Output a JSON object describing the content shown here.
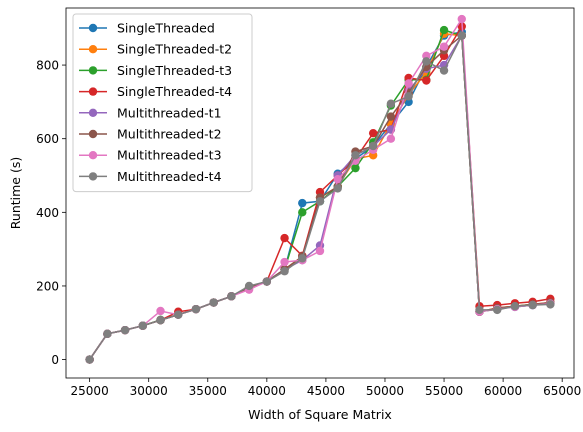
{
  "chart_data": {
    "type": "line",
    "title": "",
    "xlabel": "Width of Square Matrix",
    "ylabel": "Runtime (s)",
    "xlim": [
      23000,
      66000
    ],
    "ylim": [
      -50,
      955
    ],
    "xticks": [
      25000,
      30000,
      35000,
      40000,
      45000,
      50000,
      55000,
      60000,
      65000
    ],
    "yticks": [
      0,
      200,
      400,
      600,
      800
    ],
    "grid": false,
    "legend_position": "top-left",
    "x": [
      25000,
      26500,
      28000,
      29500,
      31000,
      32500,
      34000,
      35500,
      37000,
      38500,
      40000,
      41500,
      43000,
      44500,
      46000,
      47500,
      49000,
      50500,
      52000,
      53500,
      55000,
      56500,
      58000,
      59500,
      61000,
      62500,
      64000
    ],
    "series": [
      {
        "name": "SingleThreaded",
        "color": "#1f77b4",
        "values": [
          0,
          70,
          80,
          92,
          107,
          122,
          137,
          155,
          172,
          197,
          212,
          245,
          425,
          430,
          505,
          545,
          580,
          640,
          700,
          795,
          880,
          890,
          130,
          138,
          143,
          148,
          152
        ]
      },
      {
        "name": "SingleThreaded-t2",
        "color": "#ff7f0e",
        "values": [
          0,
          70,
          80,
          92,
          107,
          122,
          137,
          155,
          172,
          197,
          212,
          245,
          280,
          440,
          470,
          545,
          555,
          640,
          720,
          780,
          885,
          880,
          130,
          140,
          145,
          150,
          155
        ]
      },
      {
        "name": "SingleThreaded-t3",
        "color": "#2ca02c",
        "values": [
          0,
          70,
          80,
          92,
          108,
          122,
          137,
          155,
          172,
          197,
          212,
          245,
          400,
          430,
          470,
          520,
          590,
          690,
          760,
          760,
          895,
          880,
          130,
          137,
          145,
          150,
          152
        ]
      },
      {
        "name": "SingleThreaded-t4",
        "color": "#d62728",
        "values": [
          0,
          70,
          80,
          92,
          107,
          130,
          137,
          155,
          172,
          197,
          212,
          330,
          282,
          455,
          500,
          545,
          615,
          625,
          765,
          758,
          825,
          905,
          145,
          148,
          153,
          157,
          165
        ]
      },
      {
        "name": "Multithreaded-t1",
        "color": "#9467bd",
        "values": [
          0,
          70,
          80,
          92,
          107,
          122,
          137,
          155,
          172,
          197,
          212,
          245,
          270,
          310,
          500,
          555,
          580,
          625,
          730,
          790,
          800,
          880,
          130,
          138,
          143,
          148,
          152
        ]
      },
      {
        "name": "Multithreaded-t2",
        "color": "#8c564b",
        "values": [
          0,
          70,
          80,
          92,
          107,
          122,
          137,
          155,
          172,
          197,
          212,
          245,
          280,
          440,
          470,
          565,
          580,
          660,
          725,
          795,
          840,
          880,
          130,
          140,
          145,
          150,
          155
        ]
      },
      {
        "name": "Multithreaded-t3",
        "color": "#e377c2",
        "values": [
          0,
          70,
          80,
          92,
          132,
          122,
          137,
          155,
          172,
          190,
          212,
          265,
          270,
          295,
          490,
          540,
          570,
          600,
          750,
          825,
          850,
          925,
          130,
          137,
          143,
          148,
          152
        ]
      },
      {
        "name": "Multithreaded-t4",
        "color": "#7f7f7f",
        "values": [
          0,
          70,
          80,
          92,
          107,
          122,
          137,
          155,
          172,
          200,
          212,
          240,
          275,
          430,
          465,
          555,
          580,
          695,
          715,
          810,
          785,
          880,
          135,
          135,
          145,
          148,
          150
        ]
      }
    ]
  }
}
